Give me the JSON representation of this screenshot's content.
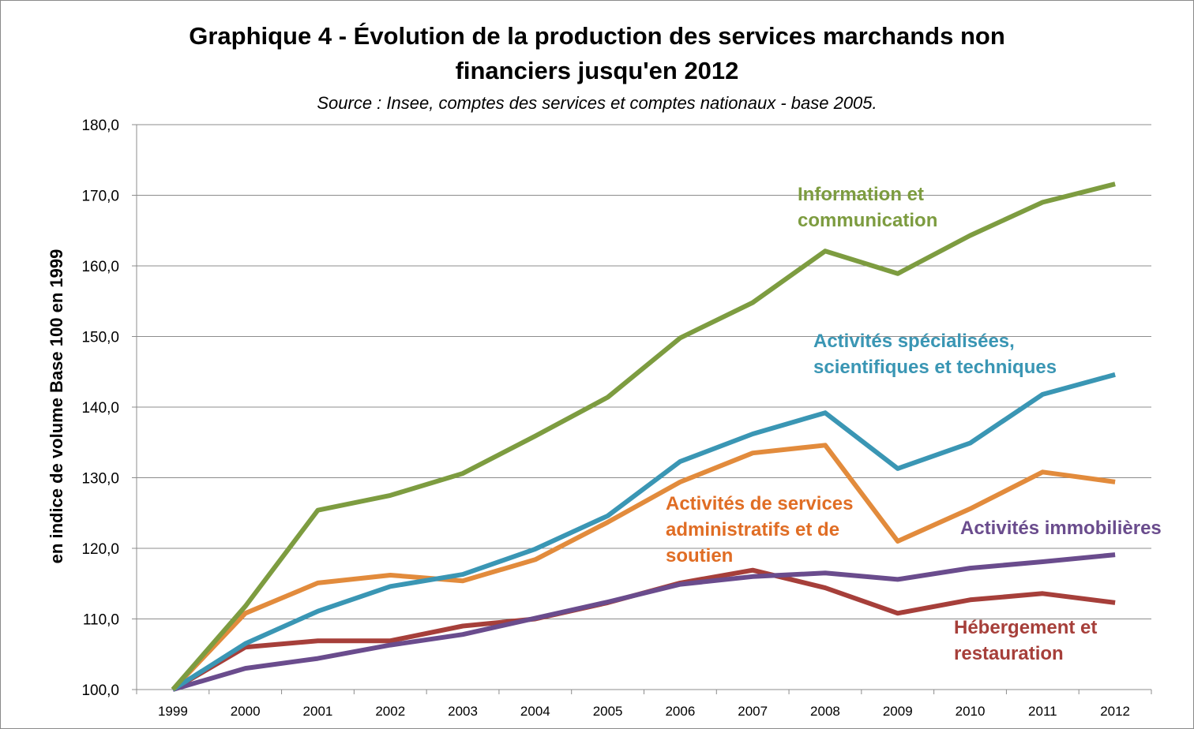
{
  "chart_data": {
    "type": "line",
    "title": "Graphique 4 - Évolution de la production des services marchands non financiers jusqu'en 2012",
    "title_line1": "Graphique 4 - Évolution de la production des services marchands non",
    "title_line2": "financiers jusqu'en 2012",
    "subtitle": "Source : Insee, comptes des services et comptes nationaux - base 2005.",
    "xlabel": "",
    "ylabel": "en indice de volume Base 100 en 1999",
    "ylim": [
      100,
      180
    ],
    "yticks": [
      "100,0",
      "110,0",
      "120,0",
      "130,0",
      "140,0",
      "150,0",
      "160,0",
      "170,0",
      "180,0"
    ],
    "categories": [
      "1999",
      "2000",
      "2001",
      "2002",
      "2003",
      "2004",
      "2005",
      "2006",
      "2007",
      "2008",
      "2009",
      "2010",
      "2011",
      "2012"
    ],
    "grid": true,
    "series": [
      {
        "name": "Hébergement et restauration",
        "label_lines": [
          "Hébergement et",
          "restauration"
        ],
        "color": "#a63f3a",
        "values": [
          100.0,
          106.0,
          106.9,
          106.9,
          109.0,
          110.0,
          112.3,
          115.1,
          116.9,
          114.4,
          110.8,
          112.7,
          113.6,
          112.3
        ]
      },
      {
        "name": "Activités immobilières",
        "label_lines": [
          "Activités immobilières"
        ],
        "color": "#6a4c8d",
        "values": [
          100.0,
          103.0,
          104.4,
          106.3,
          107.8,
          110.1,
          112.4,
          114.9,
          116.0,
          116.5,
          115.6,
          117.2,
          118.1,
          119.1
        ]
      },
      {
        "name": "Activités de services administratifs et de soutien",
        "label_lines": [
          "Activités de services",
          "administratifs et de",
          "soutien"
        ],
        "color": "#e28b3c",
        "values": [
          100.0,
          110.8,
          115.1,
          116.2,
          115.4,
          118.4,
          123.7,
          129.4,
          133.5,
          134.6,
          121.0,
          125.6,
          130.8,
          129.4
        ]
      },
      {
        "name": "Activités spécialisées, scientifiques et techniques",
        "label_lines": [
          "Activités spécialisées,",
          "scientifiques et techniques"
        ],
        "color": "#3a96b4",
        "values": [
          100.0,
          106.5,
          111.1,
          114.6,
          116.3,
          119.9,
          124.6,
          132.3,
          136.2,
          139.2,
          131.3,
          134.9,
          141.8,
          144.6
        ]
      },
      {
        "name": "Information et communication",
        "label_lines": [
          "Information et",
          "communication"
        ],
        "color": "#7d9c40",
        "values": [
          100.0,
          111.8,
          125.4,
          127.5,
          130.6,
          135.9,
          141.4,
          149.8,
          154.8,
          162.1,
          158.9,
          164.3,
          169.0,
          171.6
        ]
      }
    ]
  }
}
